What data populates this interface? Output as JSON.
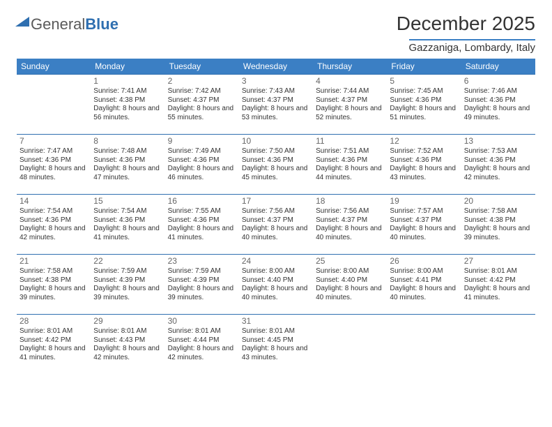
{
  "logo": {
    "text1": "General",
    "text2": "Blue"
  },
  "title": "December 2025",
  "location": "Gazzaniga, Lombardy, Italy",
  "colors": {
    "accent": "#3b7fc4",
    "rule": "#2f6fb0",
    "text": "#333333",
    "muted": "#666666",
    "bg": "#ffffff"
  },
  "dayHeaders": [
    "Sunday",
    "Monday",
    "Tuesday",
    "Wednesday",
    "Thursday",
    "Friday",
    "Saturday"
  ],
  "weeks": [
    [
      null,
      {
        "n": "1",
        "r": "7:41 AM",
        "s": "4:38 PM",
        "d": "8 hours and 56 minutes."
      },
      {
        "n": "2",
        "r": "7:42 AM",
        "s": "4:37 PM",
        "d": "8 hours and 55 minutes."
      },
      {
        "n": "3",
        "r": "7:43 AM",
        "s": "4:37 PM",
        "d": "8 hours and 53 minutes."
      },
      {
        "n": "4",
        "r": "7:44 AM",
        "s": "4:37 PM",
        "d": "8 hours and 52 minutes."
      },
      {
        "n": "5",
        "r": "7:45 AM",
        "s": "4:36 PM",
        "d": "8 hours and 51 minutes."
      },
      {
        "n": "6",
        "r": "7:46 AM",
        "s": "4:36 PM",
        "d": "8 hours and 49 minutes."
      }
    ],
    [
      {
        "n": "7",
        "r": "7:47 AM",
        "s": "4:36 PM",
        "d": "8 hours and 48 minutes."
      },
      {
        "n": "8",
        "r": "7:48 AM",
        "s": "4:36 PM",
        "d": "8 hours and 47 minutes."
      },
      {
        "n": "9",
        "r": "7:49 AM",
        "s": "4:36 PM",
        "d": "8 hours and 46 minutes."
      },
      {
        "n": "10",
        "r": "7:50 AM",
        "s": "4:36 PM",
        "d": "8 hours and 45 minutes."
      },
      {
        "n": "11",
        "r": "7:51 AM",
        "s": "4:36 PM",
        "d": "8 hours and 44 minutes."
      },
      {
        "n": "12",
        "r": "7:52 AM",
        "s": "4:36 PM",
        "d": "8 hours and 43 minutes."
      },
      {
        "n": "13",
        "r": "7:53 AM",
        "s": "4:36 PM",
        "d": "8 hours and 42 minutes."
      }
    ],
    [
      {
        "n": "14",
        "r": "7:54 AM",
        "s": "4:36 PM",
        "d": "8 hours and 42 minutes."
      },
      {
        "n": "15",
        "r": "7:54 AM",
        "s": "4:36 PM",
        "d": "8 hours and 41 minutes."
      },
      {
        "n": "16",
        "r": "7:55 AM",
        "s": "4:36 PM",
        "d": "8 hours and 41 minutes."
      },
      {
        "n": "17",
        "r": "7:56 AM",
        "s": "4:37 PM",
        "d": "8 hours and 40 minutes."
      },
      {
        "n": "18",
        "r": "7:56 AM",
        "s": "4:37 PM",
        "d": "8 hours and 40 minutes."
      },
      {
        "n": "19",
        "r": "7:57 AM",
        "s": "4:37 PM",
        "d": "8 hours and 40 minutes."
      },
      {
        "n": "20",
        "r": "7:58 AM",
        "s": "4:38 PM",
        "d": "8 hours and 39 minutes."
      }
    ],
    [
      {
        "n": "21",
        "r": "7:58 AM",
        "s": "4:38 PM",
        "d": "8 hours and 39 minutes."
      },
      {
        "n": "22",
        "r": "7:59 AM",
        "s": "4:39 PM",
        "d": "8 hours and 39 minutes."
      },
      {
        "n": "23",
        "r": "7:59 AM",
        "s": "4:39 PM",
        "d": "8 hours and 39 minutes."
      },
      {
        "n": "24",
        "r": "8:00 AM",
        "s": "4:40 PM",
        "d": "8 hours and 40 minutes."
      },
      {
        "n": "25",
        "r": "8:00 AM",
        "s": "4:40 PM",
        "d": "8 hours and 40 minutes."
      },
      {
        "n": "26",
        "r": "8:00 AM",
        "s": "4:41 PM",
        "d": "8 hours and 40 minutes."
      },
      {
        "n": "27",
        "r": "8:01 AM",
        "s": "4:42 PM",
        "d": "8 hours and 41 minutes."
      }
    ],
    [
      {
        "n": "28",
        "r": "8:01 AM",
        "s": "4:42 PM",
        "d": "8 hours and 41 minutes."
      },
      {
        "n": "29",
        "r": "8:01 AM",
        "s": "4:43 PM",
        "d": "8 hours and 42 minutes."
      },
      {
        "n": "30",
        "r": "8:01 AM",
        "s": "4:44 PM",
        "d": "8 hours and 42 minutes."
      },
      {
        "n": "31",
        "r": "8:01 AM",
        "s": "4:45 PM",
        "d": "8 hours and 43 minutes."
      },
      null,
      null,
      null
    ]
  ],
  "labels": {
    "sunrise": "Sunrise:",
    "sunset": "Sunset:",
    "daylight": "Daylight:"
  }
}
